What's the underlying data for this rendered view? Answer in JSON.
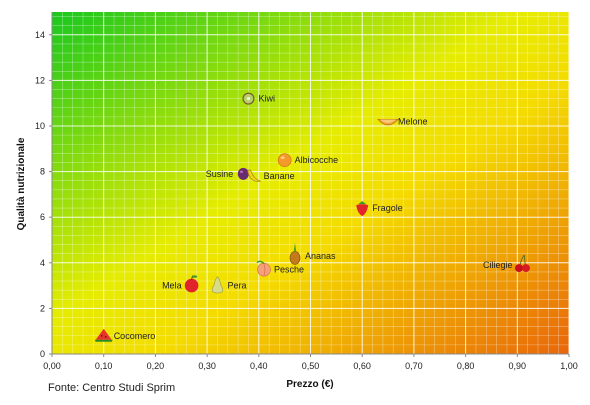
{
  "chart_data": {
    "type": "scatter",
    "xlabel": "Prezzo (€)",
    "ylabel": "Qualità nutrizionale",
    "xlim": [
      0,
      1
    ],
    "ylim": [
      0,
      15
    ],
    "xticks": [
      "0,00",
      "0,10",
      "0,20",
      "0,30",
      "0,40",
      "0,50",
      "0,60",
      "0,70",
      "0,80",
      "0,90",
      "1,00"
    ],
    "yticks": [
      "0",
      "2",
      "4",
      "6",
      "8",
      "10",
      "12",
      "14"
    ],
    "grid": true,
    "background": "gradient green (top-left) to orange (bottom-right)",
    "colors": {
      "green": "#19c81e",
      "yellow": "#f0e800",
      "orange": "#e8660a"
    },
    "points": [
      {
        "label": "Kiwi",
        "x": 0.38,
        "y": 11.2,
        "icon": "kiwi-icon",
        "label_side": "right"
      },
      {
        "label": "Melone",
        "x": 0.65,
        "y": 10.2,
        "icon": "melon-icon",
        "label_side": "right"
      },
      {
        "label": "Albicocche",
        "x": 0.45,
        "y": 8.5,
        "icon": "apricot-icon",
        "label_side": "right"
      },
      {
        "label": "Susine",
        "x": 0.37,
        "y": 7.9,
        "icon": "plum-icon",
        "label_side": "left"
      },
      {
        "label": "Banane",
        "x": 0.39,
        "y": 7.8,
        "icon": "banana-icon",
        "label_side": "right"
      },
      {
        "label": "Fragole",
        "x": 0.6,
        "y": 6.4,
        "icon": "strawberry-icon",
        "label_side": "right"
      },
      {
        "label": "Ananas",
        "x": 0.47,
        "y": 4.3,
        "icon": "pineapple-icon",
        "label_side": "right"
      },
      {
        "label": "Ciliegie",
        "x": 0.91,
        "y": 3.9,
        "icon": "cherry-icon",
        "label_side": "left"
      },
      {
        "label": "Pesche",
        "x": 0.41,
        "y": 3.7,
        "icon": "peach-icon",
        "label_side": "right"
      },
      {
        "label": "Mela",
        "x": 0.27,
        "y": 3.0,
        "icon": "apple-icon",
        "label_side": "left"
      },
      {
        "label": "Pera",
        "x": 0.32,
        "y": 3.0,
        "icon": "pear-icon",
        "label_side": "right"
      },
      {
        "label": "Cocomero",
        "x": 0.1,
        "y": 0.8,
        "icon": "watermelon-icon",
        "label_side": "right"
      }
    ]
  },
  "source": "Fonte: Centro Studi Sprim"
}
